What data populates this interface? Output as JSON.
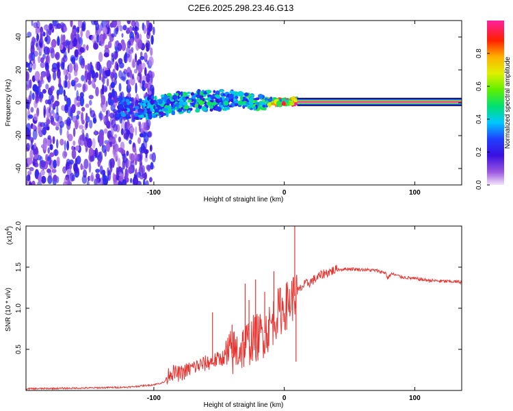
{
  "title": "C2E6.2025.298.23.46.G13",
  "chart_data": [
    {
      "type": "heatmap",
      "xlabel": "Height of straight line (km)",
      "ylabel": "Frequency (Hz)",
      "xlim": [
        -198,
        136
      ],
      "ylim": [
        -50,
        50
      ],
      "xticks": [
        -100,
        0,
        100
      ],
      "xtick_labels": [
        "-100",
        "0",
        "100"
      ],
      "yticks": [
        -40,
        -20,
        0,
        20,
        40
      ],
      "ytick_labels": [
        "-40",
        "-20",
        "0",
        "20",
        "40"
      ],
      "grid": false,
      "noise_region": {
        "x": [
          -198,
          -100
        ],
        "y": [
          -50,
          50
        ],
        "amplitude": [
          0.05,
          0.25
        ]
      },
      "signal_trace": [
        {
          "x": -125,
          "y": -3,
          "amp": 0.3
        },
        {
          "x": -110,
          "y": -4,
          "amp": 0.35
        },
        {
          "x": -95,
          "y": -2,
          "amp": 0.4
        },
        {
          "x": -80,
          "y": 0,
          "amp": 0.45
        },
        {
          "x": -65,
          "y": 1,
          "amp": 0.45
        },
        {
          "x": -50,
          "y": 2,
          "amp": 0.4
        },
        {
          "x": -35,
          "y": 2,
          "amp": 0.4
        },
        {
          "x": -20,
          "y": 0,
          "amp": 0.5
        },
        {
          "x": -8,
          "y": 0.5,
          "amp": 0.7
        },
        {
          "x": 0,
          "y": 0.5,
          "amp": 0.85
        },
        {
          "x": 10,
          "y": 0.5,
          "amp": 0.95
        },
        {
          "x": 136,
          "y": 0.5,
          "amp": 1.0
        }
      ],
      "colorbar": {
        "label": "Normalized spectral amplitude",
        "range": [
          0,
          1
        ],
        "ticks": [
          0,
          0.2,
          0.4,
          0.6,
          0.8
        ],
        "tick_labels": [
          "0.0",
          "0.2",
          "0.4",
          "0.6",
          "0.8"
        ]
      }
    },
    {
      "type": "line",
      "xlabel": "Height of straight line (km)",
      "ylabel": "SNR (10 * v/v)",
      "y_scale_label": "(x10",
      "y_scale_exponent": "4",
      "y_scale_close": ")",
      "xlim": [
        -198,
        136
      ],
      "ylim": [
        0,
        2.0
      ],
      "xticks": [
        -100,
        0,
        100
      ],
      "xtick_labels": [
        "-100",
        "0",
        "100"
      ],
      "yticks": [
        0.5,
        1.0,
        1.5,
        2.0
      ],
      "ytick_labels": [
        "0.5",
        "1.0",
        "1.5",
        "2.0"
      ],
      "grid": false,
      "series": [
        {
          "name": "SNR",
          "color": "#e8322e",
          "x": [
            -198,
            -150,
            -120,
            -100,
            -92,
            -88,
            -80,
            -70,
            -60,
            -50,
            -40,
            -30,
            -25,
            -20,
            -15,
            -10,
            -5,
            0,
            5,
            8,
            10,
            15,
            20,
            30,
            40,
            50,
            60,
            70,
            78,
            79,
            82,
            90,
            100,
            110,
            120,
            136
          ],
          "y": [
            0.02,
            0.03,
            0.04,
            0.07,
            0.1,
            0.22,
            0.2,
            0.28,
            0.33,
            0.38,
            0.45,
            0.55,
            0.62,
            0.65,
            0.7,
            0.8,
            0.95,
            1.0,
            1.1,
            1.15,
            1.2,
            1.28,
            1.32,
            1.42,
            1.47,
            1.48,
            1.47,
            1.46,
            1.43,
            1.36,
            1.42,
            1.38,
            1.36,
            1.34,
            1.33,
            1.32
          ]
        }
      ],
      "spikes": [
        {
          "x": -55,
          "y": 0.95
        },
        {
          "x": -40,
          "y": 0.8
        },
        {
          "x": -30,
          "y": 1.3
        },
        {
          "x": -27,
          "y": 1.1
        },
        {
          "x": -22,
          "y": 1.35
        },
        {
          "x": -15,
          "y": 1.2
        },
        {
          "x": -8,
          "y": 1.45
        },
        {
          "x": -3,
          "y": 1.25
        },
        {
          "x": 8,
          "y": 2.0
        },
        {
          "x": 9,
          "y": 0.35
        }
      ]
    }
  ]
}
